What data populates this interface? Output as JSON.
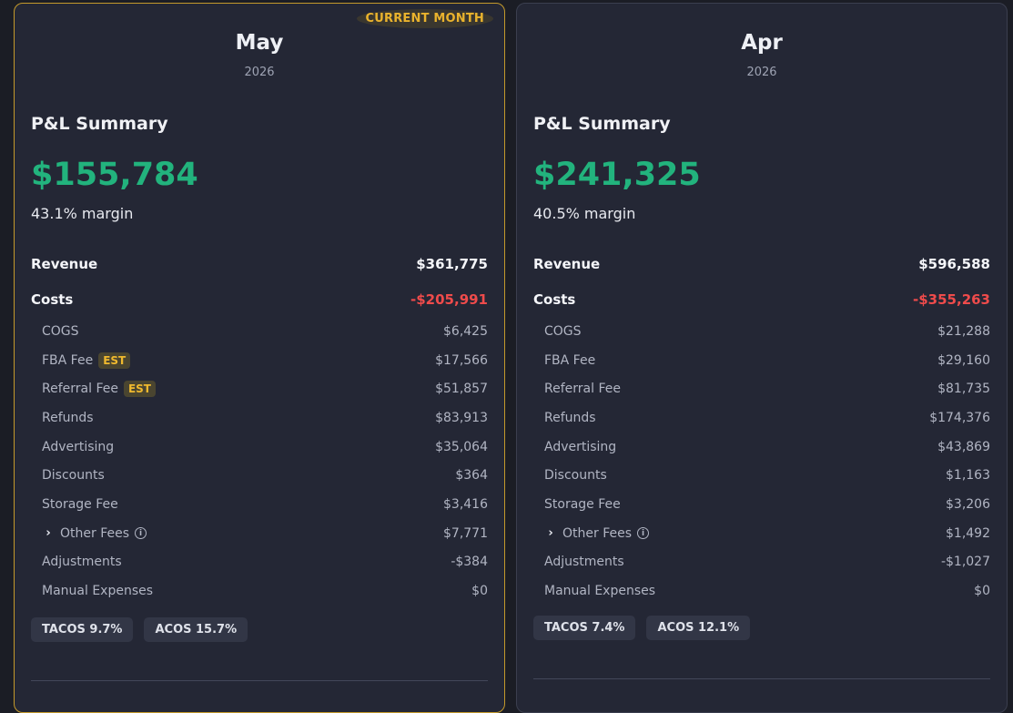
{
  "cards": [
    {
      "badge": "CURRENT MONTH",
      "month": "May",
      "year": "2026",
      "section_title": "P&L Summary",
      "profit": "$155,784",
      "margin": "43.1% margin",
      "revenue_label": "Revenue",
      "revenue": "$361,775",
      "costs_label": "Costs",
      "costs": "-$205,991",
      "items": [
        {
          "label": "COGS",
          "value": "$6,425"
        },
        {
          "label": "FBA Fee",
          "value": "$17,566",
          "tag": "EST"
        },
        {
          "label": "Referral Fee",
          "value": "$51,857",
          "tag": "EST"
        },
        {
          "label": "Refunds",
          "value": "$83,913"
        },
        {
          "label": "Advertising",
          "value": "$35,064"
        },
        {
          "label": "Discounts",
          "value": "$364"
        },
        {
          "label": "Storage Fee",
          "value": "$3,416"
        },
        {
          "label": "Other Fees",
          "value": "$7,771",
          "expandable": true
        },
        {
          "label": "Adjustments",
          "value": "-$384"
        },
        {
          "label": "Manual Expenses",
          "value": "$0"
        }
      ],
      "tacos": "TACOS 9.7%",
      "acos": "ACOS 15.7%"
    },
    {
      "month": "Apr",
      "year": "2026",
      "section_title": "P&L Summary",
      "profit": "$241,325",
      "margin": "40.5% margin",
      "revenue_label": "Revenue",
      "revenue": "$596,588",
      "costs_label": "Costs",
      "costs": "-$355,263",
      "items": [
        {
          "label": "COGS",
          "value": "$21,288"
        },
        {
          "label": "FBA Fee",
          "value": "$29,160"
        },
        {
          "label": "Referral Fee",
          "value": "$81,735"
        },
        {
          "label": "Refunds",
          "value": "$174,376"
        },
        {
          "label": "Advertising",
          "value": "$43,869"
        },
        {
          "label": "Discounts",
          "value": "$1,163"
        },
        {
          "label": "Storage Fee",
          "value": "$3,206"
        },
        {
          "label": "Other Fees",
          "value": "$1,492",
          "expandable": true
        },
        {
          "label": "Adjustments",
          "value": "-$1,027"
        },
        {
          "label": "Manual Expenses",
          "value": "$0"
        }
      ],
      "tacos": "TACOS 7.4%",
      "acos": "ACOS 12.1%"
    }
  ],
  "colors": {
    "profit": "#22b37d",
    "negative": "#ef4b4b",
    "current_border": "#c49a2b",
    "badge_text": "#eab32d"
  },
  "icons": {
    "expand": "chevron-right-icon",
    "info": "info-circle-icon"
  }
}
